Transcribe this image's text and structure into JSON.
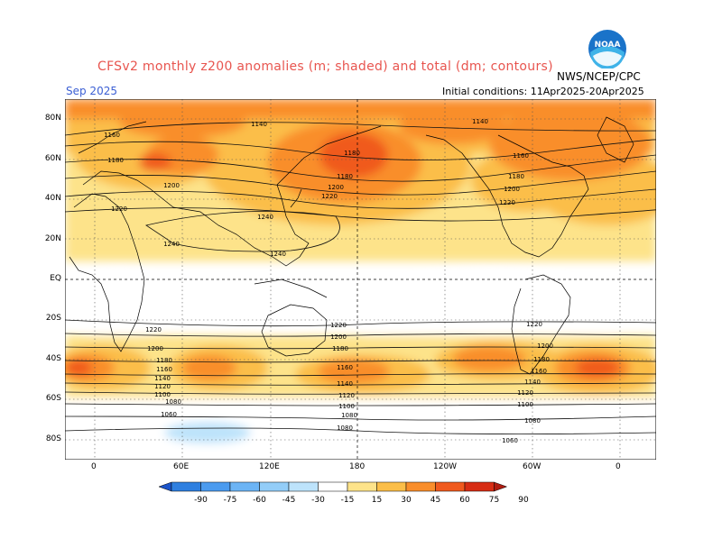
{
  "title": "CFSv2 monthly z200 anomalies (m; shaded) and total (dm; contours)",
  "month": "Sep 2025",
  "initial_conditions": "Initial conditions: 11Apr2025-20Apr2025",
  "org": "NWS/NCEP/CPC",
  "logo_text": "NOAA",
  "lat_labels": [
    "80N",
    "60N",
    "40N",
    "20N",
    "EQ",
    "20S",
    "40S",
    "60S",
    "80S"
  ],
  "lon_labels": [
    "0",
    "60E",
    "120E",
    "180",
    "120W",
    "60W",
    "0"
  ],
  "contour_labels": [
    "1140",
    "1160",
    "1180",
    "1200",
    "1220",
    "1240",
    "1100",
    "1080",
    "1060",
    "1120"
  ],
  "colorbar": {
    "ticks": [
      "-90",
      "-75",
      "-60",
      "-45",
      "-30",
      "-15",
      "15",
      "30",
      "45",
      "60",
      "75",
      "90"
    ],
    "colors": [
      "#1b54c9",
      "#2e7fe0",
      "#4b9bef",
      "#6cb4f5",
      "#93cdf8",
      "#bde3fb",
      "#ffffff",
      "#fde38a",
      "#fbbe48",
      "#f98e2b",
      "#f05a1e",
      "#d72d14",
      "#b01c10"
    ]
  }
}
